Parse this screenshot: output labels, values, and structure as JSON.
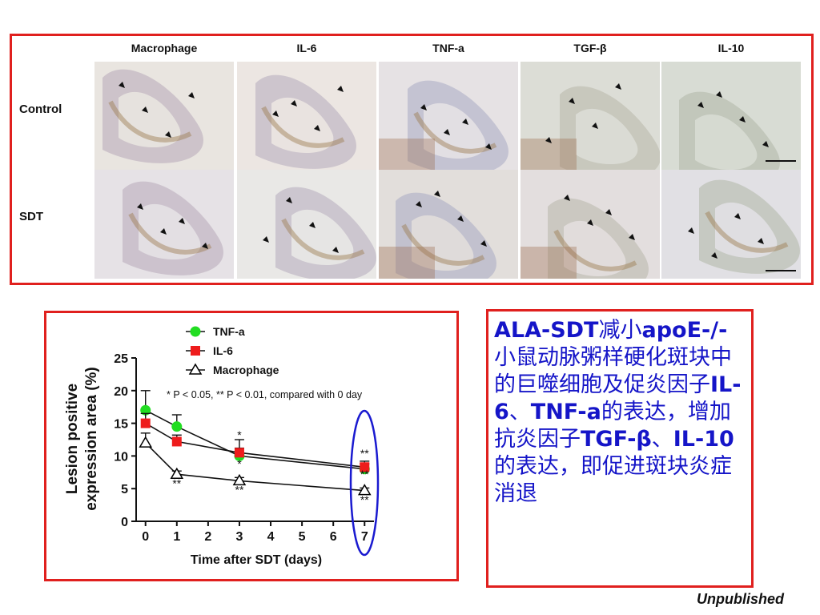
{
  "histology": {
    "columns": [
      "Macrophage",
      "IL-6",
      "TNF-a",
      "TGF-β",
      "IL-10"
    ],
    "rows": [
      "Control",
      "SDT"
    ]
  },
  "chart_data": {
    "type": "line",
    "x": [
      0,
      1,
      3,
      7
    ],
    "xlabel": "Time after SDT (days)",
    "ylabel_line1": "Lesion positive",
    "ylabel_line2": "expression area (%)",
    "xticks": [
      0,
      1,
      2,
      3,
      4,
      5,
      6,
      7
    ],
    "yticks": [
      0,
      5,
      10,
      15,
      20,
      25
    ],
    "xlim": [
      -0.3,
      7.3
    ],
    "ylim": [
      0,
      25
    ],
    "legend_position": "top",
    "annotation": "* P < 0.05, ** P < 0.01, compared with 0 day",
    "series": [
      {
        "name": "TNF-a",
        "marker": "circle",
        "color": "#22dd22",
        "values": [
          17.0,
          14.5,
          10.0,
          8.0
        ],
        "errors": [
          3.0,
          1.8,
          1.2,
          0.8
        ]
      },
      {
        "name": "IL-6",
        "marker": "square",
        "color": "#ee1c1c",
        "values": [
          15.0,
          12.2,
          10.5,
          8.3
        ],
        "errors": [
          1.5,
          1.0,
          2.0,
          0.9
        ]
      },
      {
        "name": "Macrophage",
        "marker": "triangle",
        "color": "#000000",
        "values": [
          12.0,
          7.2,
          6.2,
          4.7
        ],
        "errors": [
          1.5,
          0.5,
          0.5,
          0.4
        ]
      }
    ],
    "significance": [
      {
        "x": 3,
        "y": 12.6,
        "text": "*"
      },
      {
        "x": 3,
        "y": 8.2,
        "text": "*"
      },
      {
        "x": 1,
        "y": 5.2,
        "text": "**"
      },
      {
        "x": 3,
        "y": 4.2,
        "text": "**"
      },
      {
        "x": 7,
        "y": 9.8,
        "text": "**"
      },
      {
        "x": 7,
        "y": 6.6,
        "text": "**"
      },
      {
        "x": 7,
        "y": 2.7,
        "text": "**"
      }
    ],
    "highlight_x": 7
  },
  "caption": {
    "p1": "ALA-SDT",
    "p2": "减小",
    "p3": "apoE-/-",
    "p4": "小鼠动脉粥样硬化斑块中的巨噬细胞及促炎因子",
    "p5": "IL-6",
    "p6": "、",
    "p7": "TNF-a",
    "p8": "的表达，增加抗炎因子",
    "p9": "TGF-β",
    "p10": "、",
    "p11": "IL-10",
    "p12": "的表达，即促进斑块炎症消退"
  },
  "footer": {
    "unpublished": "Unpublished"
  }
}
